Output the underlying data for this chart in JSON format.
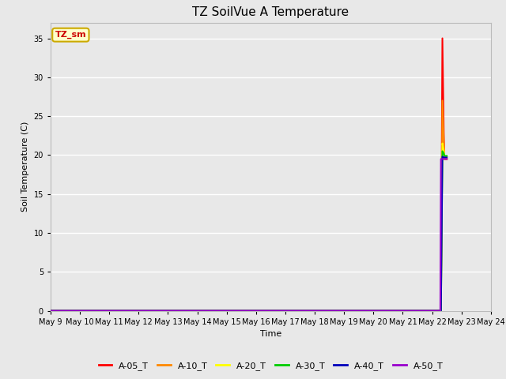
{
  "title": "TZ SoilVue A Temperature",
  "xlabel": "Time",
  "ylabel": "Soil Temperature (C)",
  "ylim": [
    0,
    37
  ],
  "yticks": [
    0,
    5,
    10,
    15,
    20,
    25,
    30,
    35
  ],
  "annotation_text": "TZ_sm",
  "annotation_color": "#cc0000",
  "annotation_bg": "#ffffcc",
  "annotation_border": "#ccaa00",
  "plot_bg": "#e8e8e8",
  "grid_color": "#ffffff",
  "series": [
    {
      "label": "A-05_T",
      "color": "#ff0000",
      "x": [
        9.0,
        22.28,
        22.3,
        22.35,
        22.4,
        22.42,
        22.5
      ],
      "y": [
        0.0,
        0.0,
        0.5,
        35.0,
        22.0,
        19.5,
        19.5
      ]
    },
    {
      "label": "A-10_T",
      "color": "#ff8800",
      "x": [
        9.0,
        22.28,
        22.3,
        22.35,
        22.4,
        22.42,
        22.5
      ],
      "y": [
        0.0,
        0.0,
        0.3,
        27.0,
        21.5,
        19.5,
        19.5
      ]
    },
    {
      "label": "A-20_T",
      "color": "#ffff00",
      "x": [
        9.0,
        22.28,
        22.3,
        22.35,
        22.4,
        22.42,
        22.5
      ],
      "y": [
        0.0,
        0.0,
        0.1,
        21.5,
        20.5,
        19.8,
        19.8
      ]
    },
    {
      "label": "A-30_T",
      "color": "#00cc00",
      "x": [
        9.0,
        22.28,
        22.3,
        22.35,
        22.4,
        22.42,
        22.5
      ],
      "y": [
        0.0,
        0.0,
        0.0,
        20.5,
        20.2,
        19.9,
        19.9
      ]
    },
    {
      "label": "A-40_T",
      "color": "#0000bb",
      "x": [
        9.0,
        22.28,
        22.3,
        22.35,
        22.4,
        22.42,
        22.5
      ],
      "y": [
        0.0,
        0.0,
        0.0,
        19.8,
        19.7,
        19.7,
        19.7
      ]
    },
    {
      "label": "A-50_T",
      "color": "#9900cc",
      "x": [
        9.0,
        22.2,
        22.28,
        22.3,
        22.35,
        22.4,
        22.42,
        22.5
      ],
      "y": [
        0.0,
        0.0,
        0.0,
        19.5,
        19.5,
        19.5,
        19.5,
        19.5
      ]
    }
  ],
  "xmin": 9,
  "xmax": 24,
  "xtick_positions": [
    9,
    10,
    11,
    12,
    13,
    14,
    15,
    16,
    17,
    18,
    19,
    20,
    21,
    22,
    23,
    24
  ],
  "xtick_labels": [
    "May 9",
    "May 10",
    "May 11",
    "May 12",
    "May 13",
    "May 14",
    "May 15",
    "May 16",
    "May 17",
    "May 18",
    "May 19",
    "May 20",
    "May 21",
    "May 22",
    "May 23",
    "May 24"
  ],
  "legend_colors": [
    "#ff0000",
    "#ff8800",
    "#ffff00",
    "#00cc00",
    "#0000bb",
    "#9900cc"
  ],
  "legend_labels": [
    "A-05_T",
    "A-10_T",
    "A-20_T",
    "A-30_T",
    "A-40_T",
    "A-50_T"
  ],
  "title_fontsize": 11,
  "axis_label_fontsize": 8,
  "tick_fontsize": 7,
  "legend_fontsize": 8
}
